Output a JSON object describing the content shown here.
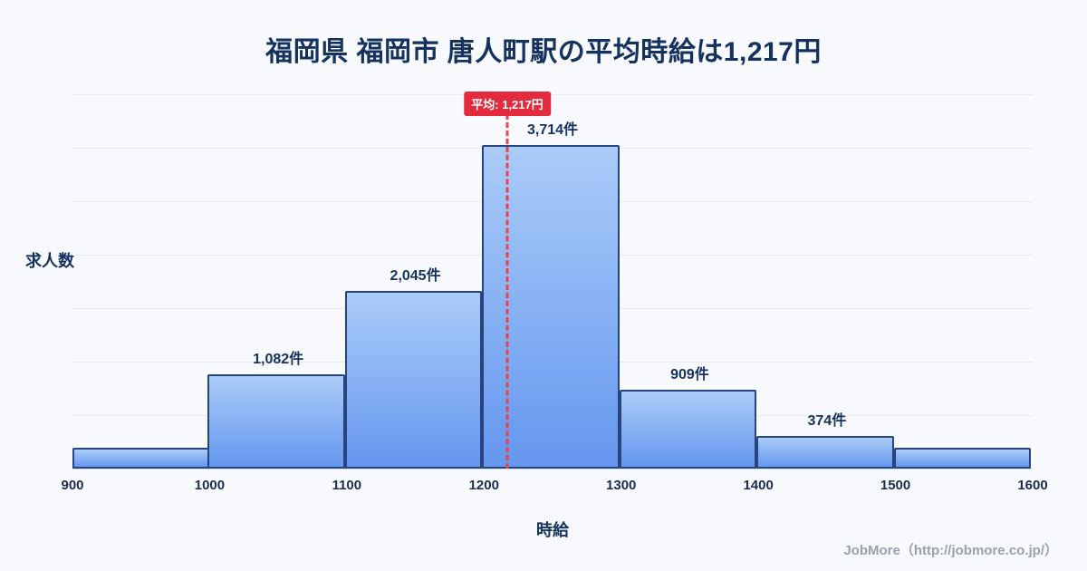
{
  "footer": {
    "credit": "JobMore（http://jobmore.co.jp/）"
  },
  "chart_data": {
    "type": "bar",
    "title": "福岡県 福岡市 唐人町駅の平均時給は1,217円",
    "xlabel": "時給",
    "ylabel": "求人数",
    "bin_edges": [
      900,
      1000,
      1100,
      1200,
      1300,
      1400,
      1500,
      1600
    ],
    "values": [
      240,
      1082,
      2045,
      3714,
      909,
      374,
      240
    ],
    "labels": [
      "",
      "1,082件",
      "2,045件",
      "3,714件",
      "909件",
      "374件",
      ""
    ],
    "average": 1217,
    "average_label": "平均: 1,217円",
    "xlim": [
      900,
      1600
    ],
    "ylim": [
      0,
      4300
    ],
    "grid": "horizontal",
    "grid_intervals": 7,
    "legend": "none",
    "colors": {
      "background": "#f7f9fd",
      "bar_top": "#abccf8",
      "bar_bottom": "#6597ef",
      "bar_border": "#27447e",
      "average_line": "#e8444f",
      "badge": "#e32b3d",
      "title_text": "#15325f"
    }
  }
}
